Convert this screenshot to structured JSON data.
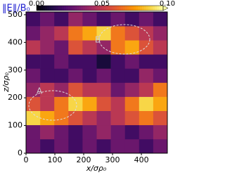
{
  "chart_data": {
    "type": "heatmap",
    "colorbar_label": "‖E‖/B₀",
    "xlabel": "x/σρ₀",
    "ylabel": "z/σρ₀",
    "colormap": "inferno",
    "clim": [
      0,
      0.1
    ],
    "cticks": [
      {
        "value": 0,
        "label": "0.00"
      },
      0.05,
      {
        "value": 0.1,
        "label": "0.10"
      }
    ],
    "xlim": [
      0,
      490
    ],
    "ylim": [
      0,
      510
    ],
    "xticks": [
      0,
      100,
      200,
      300,
      400
    ],
    "yticks": [
      0,
      100,
      200,
      300,
      400,
      500
    ],
    "xbins": [
      0,
      49,
      98,
      147,
      196,
      245,
      294,
      343,
      392,
      441,
      490
    ],
    "ybins": [
      0,
      51,
      102,
      153,
      204,
      255,
      306,
      357,
      408,
      459,
      510
    ],
    "z": [
      [
        0.03,
        0.02,
        0.03,
        0.02,
        0.03,
        0.02,
        0.03,
        0.03,
        0.02,
        0.03
      ],
      [
        0.03,
        0.04,
        0.03,
        0.02,
        0.03,
        0.04,
        0.03,
        0.02,
        0.03,
        0.04
      ],
      [
        0.09,
        0.08,
        0.07,
        0.06,
        0.05,
        0.04,
        0.05,
        0.06,
        0.07,
        0.06
      ],
      [
        0.06,
        0.05,
        0.07,
        0.09,
        0.08,
        0.06,
        0.05,
        0.07,
        0.09,
        0.08
      ],
      [
        0.04,
        0.05,
        0.04,
        0.06,
        0.05,
        0.05,
        0.03,
        0.04,
        0.05,
        0.07
      ],
      [
        0.03,
        0.02,
        0.02,
        0.03,
        0.02,
        0.03,
        0.02,
        0.02,
        0.04,
        0.03
      ],
      [
        0.02,
        0.02,
        0.03,
        0.02,
        0.02,
        0.01,
        0.02,
        0.03,
        0.02,
        0.02
      ],
      [
        0.05,
        0.04,
        0.03,
        0.06,
        0.05,
        0.04,
        0.07,
        0.08,
        0.06,
        0.05
      ],
      [
        0.03,
        0.04,
        0.05,
        0.07,
        0.08,
        0.09,
        0.07,
        0.06,
        0.05,
        0.04
      ],
      [
        0.02,
        0.03,
        0.02,
        0.04,
        0.03,
        0.02,
        0.03,
        0.02,
        0.03,
        0.02
      ]
    ],
    "annotations": [
      "A",
      "B"
    ]
  }
}
